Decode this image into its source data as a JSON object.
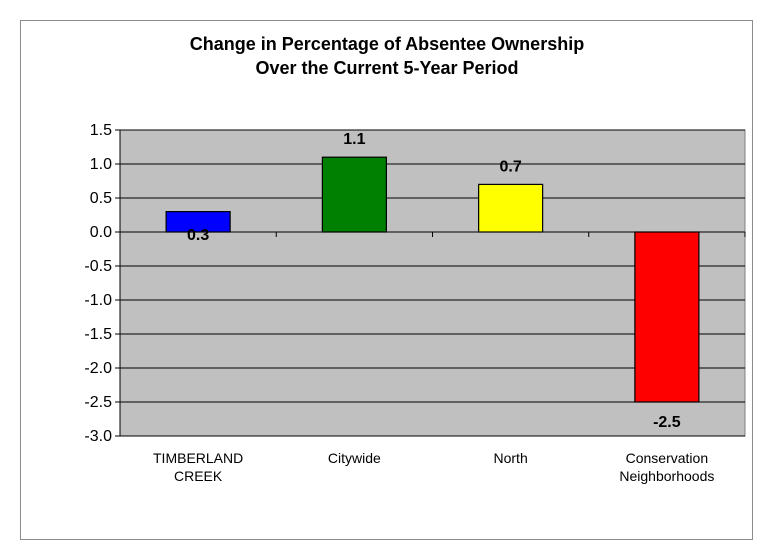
{
  "chart_data": {
    "type": "bar",
    "title_lines": [
      "Change in Percentage of Absentee Ownership",
      "Over the Current 5-Year Period"
    ],
    "categories": [
      [
        "TIMBERLAND",
        "CREEK"
      ],
      [
        "Citywide"
      ],
      [
        "North"
      ],
      [
        "Conservation",
        "Neighborhoods"
      ]
    ],
    "values": [
      0.3,
      1.1,
      0.7,
      -2.5
    ],
    "data_labels": [
      "0.3",
      "1.1",
      "0.7",
      "-2.5"
    ],
    "colors": [
      "#0000ff",
      "#008000",
      "#ffff00",
      "#ff0000"
    ],
    "ylim": [
      -3.0,
      1.5
    ],
    "yticks": [
      "1.5",
      "1.0",
      "0.5",
      "0.0",
      "-0.5",
      "-1.0",
      "-1.5",
      "-2.0",
      "-2.5",
      "-3.0"
    ],
    "ytick_values": [
      1.5,
      1.0,
      0.5,
      0.0,
      -0.5,
      -1.0,
      -1.5,
      -2.0,
      -2.5,
      -3.0
    ],
    "grid": true,
    "plot_background": "#c0c0c0",
    "legend": "none"
  }
}
